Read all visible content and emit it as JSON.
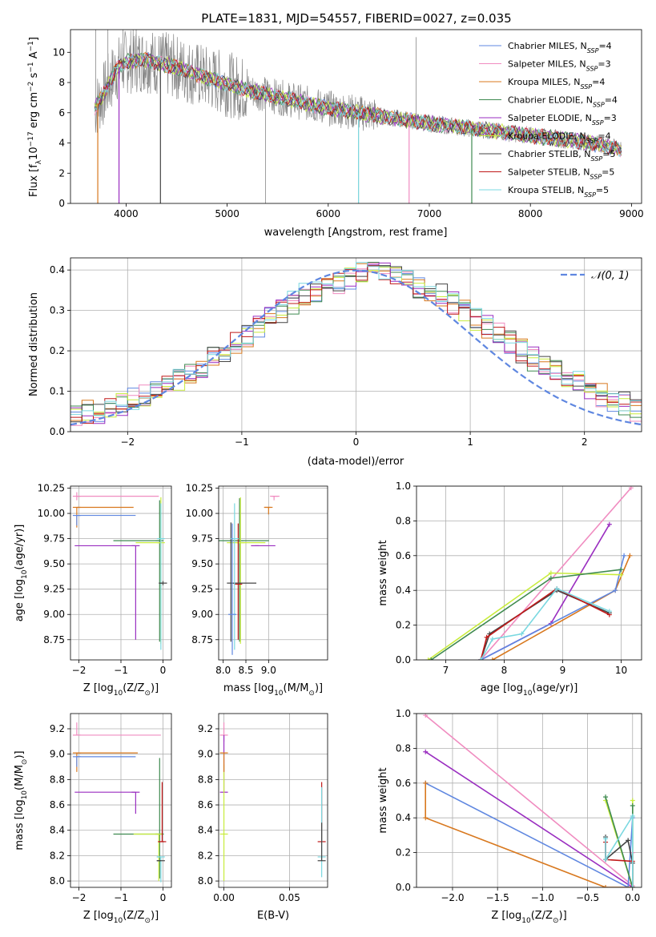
{
  "title": "PLATE=1831, MJD=54557, FIBERID=0027, z=0.035",
  "colors": {
    "chabrier_miles": "#5f87e0",
    "salpeter_miles": "#f08cc0",
    "kroupa_miles": "#d8781e",
    "chabrier_elodie": "#3f8a50",
    "salpeter_elodie": "#9a2ec0",
    "kroupa_elodie": "#c8ec3c",
    "chabrier_stelib": "#444444",
    "salpeter_stelib": "#c01818",
    "kroupa_stelib": "#7ad8e0",
    "data": "#888888",
    "normal": "#5f87e0"
  },
  "chart_data": [
    {
      "type": "line",
      "panel": "spectrum",
      "xlabel": "wavelength [Angstrom, rest frame]",
      "ylabel_parts": [
        "Flux [f",
        "λ",
        "10",
        "−17",
        " erg cm",
        "−2",
        " s",
        "−1",
        " A",
        "−1",
        "]"
      ],
      "xlim": [
        3450,
        9100
      ],
      "ylim": [
        0,
        11.5
      ],
      "xticks": [
        "4000",
        "5000",
        "6000",
        "7000",
        "8000",
        "9000"
      ],
      "yticks": [
        "0",
        "2",
        "4",
        "6",
        "8",
        "10"
      ],
      "legend_position": "top-right",
      "legend": [
        {
          "key": "chabrier_miles",
          "name": "Chabrier MILES, N",
          "sub": "SSP",
          "n": "=4"
        },
        {
          "key": "salpeter_miles",
          "name": "Salpeter MILES, N",
          "sub": "SSP",
          "n": "=3"
        },
        {
          "key": "kroupa_miles",
          "name": "Kroupa MILES, N",
          "sub": "SSP",
          "n": "=4"
        },
        {
          "key": "chabrier_elodie",
          "name": "Chabrier ELODIE, N",
          "sub": "SSP",
          "n": "=4"
        },
        {
          "key": "salpeter_elodie",
          "name": "Salpeter ELODIE, N",
          "sub": "SSP",
          "n": "=3"
        },
        {
          "key": "kroupa_elodie",
          "name": "Kroupa ELODIE, N",
          "sub": "SSP",
          "n": "=4"
        },
        {
          "key": "chabrier_stelib",
          "name": "Chabrier STELIB, N",
          "sub": "SSP",
          "n": "=5"
        },
        {
          "key": "salpeter_stelib",
          "name": "Salpeter STELIB, N",
          "sub": "SSP",
          "n": "=5"
        },
        {
          "key": "kroupa_stelib",
          "name": "Kroupa STELIB, N",
          "sub": "SSP",
          "n": "=5"
        }
      ],
      "model_continuum": [
        [
          3680,
          6.2
        ],
        [
          3760,
          7.0
        ],
        [
          3900,
          8.8
        ],
        [
          4000,
          9.4
        ],
        [
          4200,
          9.5
        ],
        [
          4500,
          9.0
        ],
        [
          4800,
          8.3
        ],
        [
          5200,
          7.5
        ],
        [
          5600,
          6.9
        ],
        [
          6000,
          6.3
        ],
        [
          6500,
          5.8
        ],
        [
          7000,
          5.3
        ],
        [
          7500,
          4.9
        ],
        [
          8000,
          4.5
        ],
        [
          8500,
          4.1
        ],
        [
          8900,
          3.6
        ]
      ],
      "model_dips": [
        [
          3720,
          0
        ],
        [
          3930,
          0
        ],
        [
          4340,
          0
        ],
        [
          6300,
          0
        ],
        [
          6800,
          0
        ],
        [
          7420,
          0
        ]
      ],
      "data_spikes": [
        [
          3700,
          11.5
        ],
        [
          3820,
          11.5
        ],
        [
          3970,
          11.5
        ],
        [
          4100,
          11.5
        ],
        [
          5380,
          0
        ],
        [
          6300,
          0
        ],
        [
          6870,
          11
        ],
        [
          7420,
          0
        ]
      ]
    },
    {
      "type": "line",
      "panel": "residual_histogram",
      "xlabel": "(data-model)/error",
      "ylabel": "Normed distribution",
      "xlim": [
        -2.5,
        2.5
      ],
      "ylim": [
        0,
        0.43
      ],
      "xticks": [
        "−2",
        "−1",
        "0",
        "1",
        "2"
      ],
      "yticks": [
        "0.0",
        "0.1",
        "0.2",
        "0.3",
        "0.4"
      ],
      "legend_position": "top-right",
      "legend_label": "𝒩(0, 1)",
      "bin_width": 0.1,
      "histogram_envelope": [
        0.04,
        0.05,
        0.05,
        0.06,
        0.07,
        0.08,
        0.09,
        0.11,
        0.12,
        0.13,
        0.15,
        0.16,
        0.18,
        0.2,
        0.22,
        0.24,
        0.26,
        0.28,
        0.3,
        0.32,
        0.34,
        0.35,
        0.36,
        0.37,
        0.38,
        0.39,
        0.39,
        0.39,
        0.38,
        0.37,
        0.36,
        0.35,
        0.34,
        0.32,
        0.3,
        0.28,
        0.26,
        0.24,
        0.22,
        0.2,
        0.18,
        0.16,
        0.15,
        0.13,
        0.12,
        0.1,
        0.09,
        0.08,
        0.07,
        0.05
      ]
    },
    {
      "type": "scatter",
      "panel": "age_vs_Z",
      "xlabel_parts": [
        "Z [log",
        "10",
        "(Z/Z",
        "⊙",
        ")]"
      ],
      "ylabel_parts": [
        "age  [log",
        "10",
        "(age/yr)]"
      ],
      "xlim": [
        -2.2,
        0.2
      ],
      "ylim": [
        8.55,
        10.27
      ],
      "xticks": [
        "−2",
        "−1",
        "0"
      ],
      "yticks": [
        "8.75",
        "9.00",
        "9.25",
        "9.50",
        "9.75",
        "10.00",
        "10.25"
      ],
      "points": [
        {
          "key": "salpeter_miles",
          "x": -2.05,
          "y": 10.17,
          "xerr": [
            0.0,
            1.95
          ],
          "yerr": [
            0.04,
            0.04
          ]
        },
        {
          "key": "kroupa_miles",
          "x": -2.05,
          "y": 10.06,
          "xerr": [
            0.0,
            1.35
          ],
          "yerr": [
            0.2,
            0.0
          ]
        },
        {
          "key": "chabrier_miles",
          "x": -2.05,
          "y": 9.98,
          "xerr": [
            0.0,
            1.4
          ],
          "yerr": [
            0.1,
            0.0
          ]
        },
        {
          "key": "salpeter_elodie",
          "x": -0.65,
          "y": 9.68,
          "xerr": [
            1.45,
            0.0
          ],
          "yerr": [
            0.93,
            0.0
          ]
        },
        {
          "key": "chabrier_elodie",
          "x": -0.08,
          "y": 9.73,
          "xerr": [
            1.1,
            0.0
          ],
          "yerr": [
            1.0,
            0.4
          ]
        },
        {
          "key": "kroupa_elodie",
          "x": -0.05,
          "y": 9.71,
          "xerr": [
            0.6,
            0.0
          ],
          "yerr": [
            1.0,
            0.45
          ]
        },
        {
          "key": "kroupa_stelib",
          "x": -0.05,
          "y": 9.75,
          "xerr": [
            0.0,
            0.0
          ],
          "yerr": [
            1.1,
            0.35
          ]
        },
        {
          "key": "chabrier_stelib",
          "x": 0.0,
          "y": 9.31,
          "xerr": [
            0.1,
            0.0
          ],
          "yerr": [
            0.02,
            0.02
          ]
        }
      ]
    },
    {
      "type": "scatter",
      "panel": "age_vs_mass",
      "xlabel_parts": [
        "mass [log",
        "10",
        "(M/M",
        "⊙",
        ")]"
      ],
      "xlim": [
        7.9,
        10.3
      ],
      "ylim": [
        8.55,
        10.27
      ],
      "xticks": [
        "8.0",
        "8.5",
        "9.0"
      ],
      "yticks": [
        "8.75",
        "9.00",
        "9.25",
        "9.50",
        "9.75",
        "10.00",
        "10.25"
      ],
      "points": [
        {
          "key": "salpeter_miles",
          "x": 9.12,
          "y": 10.17,
          "xerr": [
            0.05,
            0.12
          ],
          "yerr": [
            0.04,
            0.0
          ]
        },
        {
          "key": "kroupa_miles",
          "x": 9.0,
          "y": 10.06,
          "xerr": [
            0.1,
            0.05
          ],
          "yerr": [
            0.07,
            0.0
          ]
        },
        {
          "key": "chabrier_elodie",
          "x": 8.36,
          "y": 9.73,
          "xerr": [
            0.55,
            0.65
          ],
          "yerr": [
            1.0,
            0.42
          ]
        },
        {
          "key": "kroupa_elodie",
          "x": 8.38,
          "y": 9.71,
          "xerr": [
            0.3,
            0.55
          ],
          "yerr": [
            1.0,
            0.45
          ]
        },
        {
          "key": "salpeter_elodie",
          "x": 8.7,
          "y": 9.68,
          "xerr": [
            0.0,
            0.45
          ],
          "yerr": [
            0.0,
            0.0
          ]
        },
        {
          "key": "salpeter_stelib",
          "x": 8.33,
          "y": 9.3,
          "xerr": [
            0.0,
            0.0
          ],
          "yerr": [
            0.55,
            0.6
          ]
        },
        {
          "key": "chabrier_stelib",
          "x": 8.17,
          "y": 9.31,
          "xerr": [
            0.0,
            0.56
          ],
          "yerr": [
            0.58,
            0.6
          ]
        },
        {
          "key": "kroupa_stelib",
          "x": 8.25,
          "y": 9.75,
          "xerr": [
            0.0,
            0.0
          ],
          "yerr": [
            1.1,
            0.35
          ]
        },
        {
          "key": "chabrier_miles",
          "x": 8.2,
          "y": 9.0,
          "xerr": [
            0.0,
            0.0
          ],
          "yerr": [
            0.4,
            0.9
          ]
        }
      ]
    },
    {
      "type": "line",
      "panel": "weight_vs_age",
      "xlabel_parts": [
        "age  [log",
        "10",
        "(age/yr)]"
      ],
      "ylabel": "mass weight",
      "xlim": [
        6.5,
        10.35
      ],
      "ylim": [
        0,
        1.0
      ],
      "xticks": [
        "7",
        "8",
        "9",
        "10"
      ],
      "yticks": [
        "0.0",
        "0.2",
        "0.4",
        "0.6",
        "0.8",
        "1.0"
      ],
      "series": [
        {
          "key": "salpeter_miles",
          "x": [
            7.6,
            10.17
          ],
          "y": [
            0.0,
            0.99
          ]
        },
        {
          "key": "salpeter_elodie",
          "x": [
            7.6,
            8.8,
            9.8
          ],
          "y": [
            0.0,
            0.21,
            0.78
          ]
        },
        {
          "key": "kroupa_miles",
          "x": [
            7.8,
            9.9,
            10.15
          ],
          "y": [
            0.0,
            0.4,
            0.6
          ]
        },
        {
          "key": "chabrier_miles",
          "x": [
            7.6,
            9.9,
            10.05
          ],
          "y": [
            0.0,
            0.4,
            0.6
          ]
        },
        {
          "key": "kroupa_elodie",
          "x": [
            6.7,
            8.8,
            10.0
          ],
          "y": [
            0.0,
            0.5,
            0.49
          ]
        },
        {
          "key": "chabrier_elodie",
          "x": [
            6.75,
            8.8,
            10.0
          ],
          "y": [
            0.0,
            0.47,
            0.52
          ]
        },
        {
          "key": "chabrier_stelib",
          "x": [
            7.6,
            7.75,
            8.9,
            9.8
          ],
          "y": [
            0.0,
            0.15,
            0.4,
            0.27
          ]
        },
        {
          "key": "salpeter_stelib",
          "x": [
            7.6,
            7.7,
            8.9,
            9.8
          ],
          "y": [
            0.0,
            0.13,
            0.41,
            0.26
          ]
        },
        {
          "key": "kroupa_stelib",
          "x": [
            7.6,
            7.8,
            8.3,
            8.9,
            9.8
          ],
          "y": [
            0.0,
            0.12,
            0.15,
            0.41,
            0.28
          ]
        }
      ]
    },
    {
      "type": "scatter",
      "panel": "mass_vs_Z",
      "xlabel_parts": [
        "Z [log",
        "10",
        "(Z/Z",
        "⊙",
        ")]"
      ],
      "ylabel_parts": [
        "mass [log",
        "10",
        "(M/M",
        "⊙",
        ")]"
      ],
      "xlim": [
        -2.2,
        0.2
      ],
      "ylim": [
        7.95,
        9.32
      ],
      "xticks": [
        "−2",
        "−1",
        "0"
      ],
      "yticks": [
        "8.0",
        "8.2",
        "8.4",
        "8.6",
        "8.8",
        "9.0",
        "9.2"
      ],
      "points": [
        {
          "key": "salpeter_miles",
          "x": -2.05,
          "y": 9.15,
          "xerr": [
            0.0,
            2.0
          ],
          "yerr": [
            0.0,
            0.1
          ]
        },
        {
          "key": "kroupa_miles",
          "x": -2.05,
          "y": 9.01,
          "xerr": [
            0.0,
            1.45
          ],
          "yerr": [
            0.15,
            0.0
          ]
        },
        {
          "key": "chabrier_miles",
          "x": -2.05,
          "y": 8.98,
          "xerr": [
            0.0,
            1.4
          ],
          "yerr": [
            0.08,
            0.0
          ]
        },
        {
          "key": "salpeter_elodie",
          "x": -0.65,
          "y": 8.7,
          "xerr": [
            1.45,
            0.0
          ],
          "yerr": [
            0.17,
            0.0
          ]
        },
        {
          "key": "chabrier_elodie",
          "x": -0.08,
          "y": 8.37,
          "xerr": [
            1.1,
            0.1
          ],
          "yerr": [
            0.35,
            0.6
          ]
        },
        {
          "key": "kroupa_elodie",
          "x": -0.1,
          "y": 8.37,
          "xerr": [
            0.6,
            0.0
          ],
          "yerr": [
            0.37,
            0.0
          ]
        },
        {
          "key": "salpeter_stelib",
          "x": -0.02,
          "y": 8.31,
          "xerr": [
            0.1,
            0.05
          ],
          "yerr": [
            0.0,
            0.47
          ]
        },
        {
          "key": "kroupa_stelib",
          "x": -0.05,
          "y": 8.19,
          "xerr": [
            0.1,
            0.0
          ],
          "yerr": [
            0.2,
            0.0
          ]
        },
        {
          "key": "chabrier_stelib",
          "x": -0.05,
          "y": 8.16,
          "xerr": [
            0.1,
            0.0
          ],
          "yerr": [
            0.0,
            0.0
          ]
        }
      ]
    },
    {
      "type": "scatter",
      "panel": "mass_vs_EBV",
      "xlabel": "E(B-V)",
      "xlim": [
        -0.004,
        0.079
      ],
      "ylim": [
        7.95,
        9.32
      ],
      "xticks": [
        "0.00",
        "0.05"
      ],
      "yticks": [
        "8.0",
        "8.2",
        "8.4",
        "8.6",
        "8.8",
        "9.0",
        "9.2"
      ],
      "points": [
        {
          "key": "salpeter_miles",
          "x": 0.0,
          "y": 9.15,
          "yerr": [
            0.05,
            0.1
          ]
        },
        {
          "key": "salpeter_elodie",
          "x": 0.0,
          "y": 8.7,
          "yerr": [
            0.0,
            0.45
          ]
        },
        {
          "key": "kroupa_elodie",
          "x": 0.0,
          "y": 8.37,
          "yerr": [
            0.37,
            0.55
          ]
        },
        {
          "key": "kroupa_miles",
          "x": 0.0,
          "y": 9.01,
          "yerr": [
            0.15,
            0.0
          ]
        },
        {
          "key": "salpeter_stelib",
          "x": 0.0745,
          "y": 8.31,
          "yerr": [
            0.0,
            0.47
          ]
        },
        {
          "key": "kroupa_stelib",
          "x": 0.0745,
          "y": 8.19,
          "yerr": [
            0.16,
            0.55
          ]
        },
        {
          "key": "chabrier_stelib",
          "x": 0.0745,
          "y": 8.16,
          "yerr": [
            0.0,
            0.3
          ]
        }
      ]
    },
    {
      "type": "line",
      "panel": "weight_vs_Z",
      "xlabel_parts": [
        "Z [log",
        "10",
        "(Z/Z",
        "⊙",
        ")]"
      ],
      "ylabel": "mass weight",
      "xlim": [
        -2.4,
        0.1
      ],
      "ylim": [
        0,
        1.0
      ],
      "xticks": [
        "−2.0",
        "−1.5",
        "−1.0",
        "−0.5",
        "0.0"
      ],
      "yticks": [
        "0.0",
        "0.2",
        "0.4",
        "0.6",
        "0.8",
        "1.0"
      ],
      "series": [
        {
          "key": "salpeter_miles",
          "x": [
            -2.3,
            0.0,
            0.0
          ],
          "y": [
            0.99,
            0.01,
            0.2
          ]
        },
        {
          "key": "salpeter_elodie",
          "x": [
            -2.3,
            0.0
          ],
          "y": [
            0.78,
            0.0
          ]
        },
        {
          "key": "chabrier_miles",
          "x": [
            -2.3,
            -0.05,
            0.0
          ],
          "y": [
            0.6,
            0.0,
            0.4
          ]
        },
        {
          "key": "kroupa_miles",
          "x": [
            -2.3,
            -2.3,
            -0.3,
            0.0
          ],
          "y": [
            0.6,
            0.4,
            0.0,
            0.0
          ]
        },
        {
          "key": "kroupa_elodie",
          "x": [
            -0.3,
            0.0,
            0.0
          ],
          "y": [
            0.5,
            0.0,
            0.5
          ]
        },
        {
          "key": "chabrier_elodie",
          "x": [
            -0.3,
            0.0,
            0.0
          ],
          "y": [
            0.52,
            0.0,
            0.47
          ]
        },
        {
          "key": "chabrier_stelib",
          "x": [
            -0.3,
            -0.3,
            -0.05,
            0.0,
            0.0
          ],
          "y": [
            0.29,
            0.16,
            0.27,
            0.14,
            0.0
          ]
        },
        {
          "key": "salpeter_stelib",
          "x": [
            -0.3,
            -0.3,
            0.0,
            0.0
          ],
          "y": [
            0.26,
            0.16,
            0.15,
            0.0
          ]
        },
        {
          "key": "kroupa_stelib",
          "x": [
            -0.3,
            -0.3,
            0.0,
            0.0
          ],
          "y": [
            0.28,
            0.16,
            0.41,
            0.0
          ]
        }
      ]
    }
  ]
}
